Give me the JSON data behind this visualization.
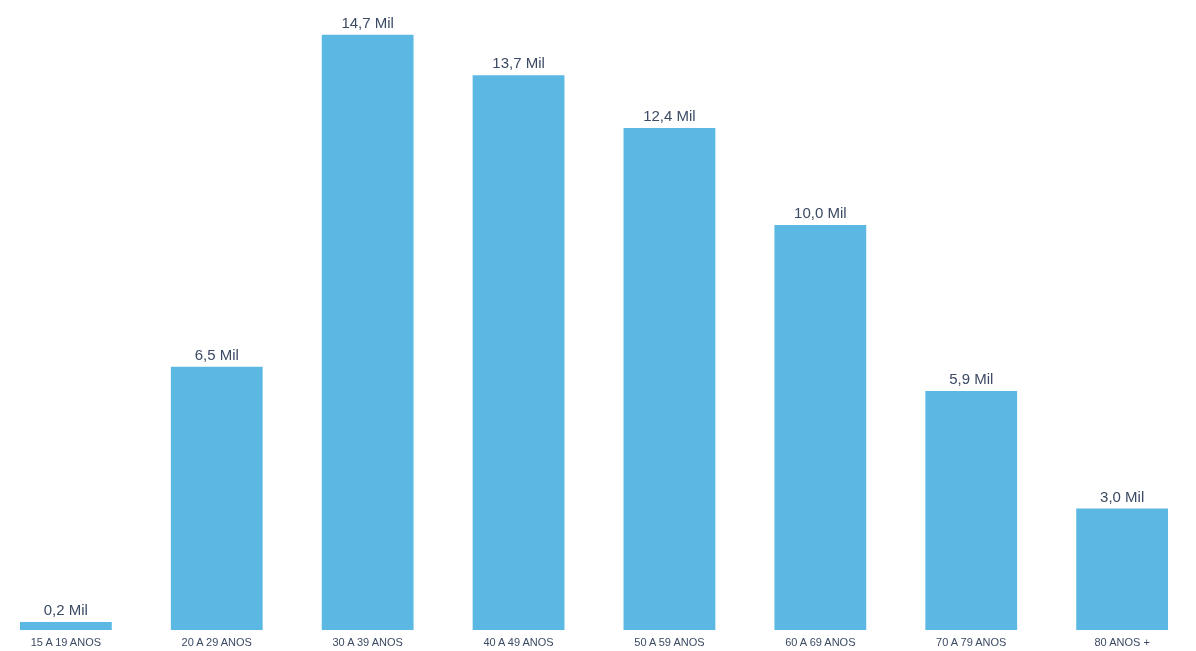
{
  "chart_data": {
    "type": "bar",
    "categories": [
      "15 A 19 ANOS",
      "20 A 29 ANOS",
      "30 A 39 ANOS",
      "40 A 49 ANOS",
      "50 A 59 ANOS",
      "60 A 69 ANOS",
      "70 A 79 ANOS",
      "80 ANOS +"
    ],
    "values": [
      0.2,
      6.5,
      14.7,
      13.7,
      12.4,
      10.0,
      5.9,
      3.0
    ],
    "value_labels": [
      "0,2 Mil",
      "6,5 Mil",
      "14,7 Mil",
      "13,7 Mil",
      "12,4 Mil",
      "10,0 Mil",
      "5,9 Mil",
      "3,0 Mil"
    ],
    "color": "#5bb8e3",
    "grid": false
  }
}
